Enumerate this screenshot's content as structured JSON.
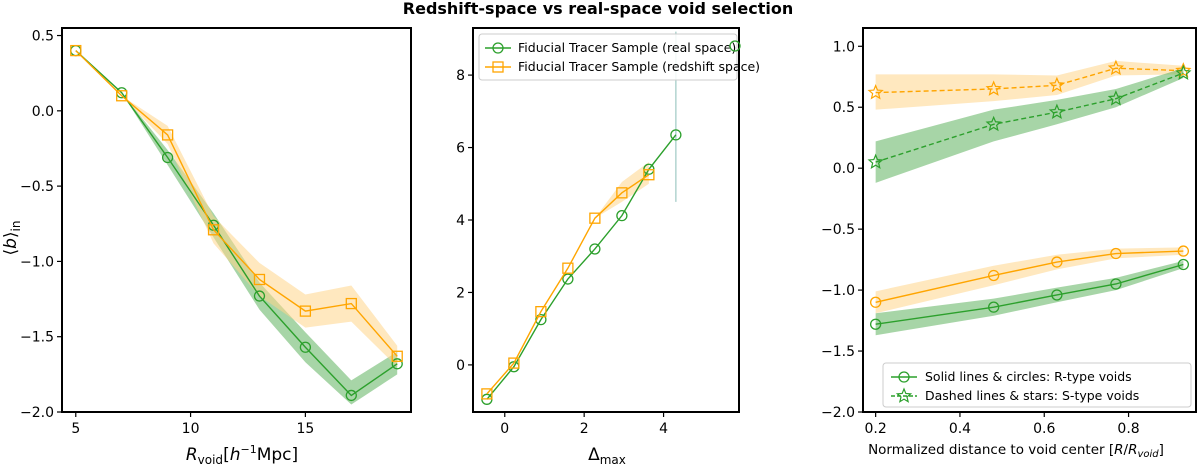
{
  "suptitle": "Redshift-space vs real-space void selection",
  "colors": {
    "green": "#2ca02c",
    "orange": "#ffa500",
    "green_fill": "#5fb35f",
    "orange_fill": "#ffd68a"
  },
  "chart_data": [
    {
      "type": "line",
      "panel": "left",
      "xlabel": "R_void [h^-1 Mpc]",
      "ylabel": "⟨b⟩_in",
      "xlim": [
        4.4,
        19.6
      ],
      "ylim": [
        -2.0,
        0.55
      ],
      "xticks": [
        5,
        10,
        15
      ],
      "yticks": [
        0.5,
        0.0,
        -0.5,
        -1.0,
        -1.5,
        -2.0
      ],
      "ytick_labels": [
        "0.5",
        "0.0",
        "−0.5",
        "−1.0",
        "−1.5",
        "−2.0"
      ],
      "series": [
        {
          "color": "green",
          "marker": "circle",
          "linestyle": "solid",
          "x": [
            5,
            7,
            9,
            11,
            13,
            15,
            17,
            19
          ],
          "y": [
            0.4,
            0.12,
            -0.31,
            -0.76,
            -1.23,
            -1.57,
            -1.89,
            -1.68
          ],
          "band_lo": [
            0.4,
            0.12,
            -0.36,
            -0.84,
            -1.32,
            -1.67,
            -1.95,
            -1.75
          ],
          "band_hi": [
            0.4,
            0.12,
            -0.26,
            -0.68,
            -1.14,
            -1.47,
            -1.79,
            -1.6
          ]
        },
        {
          "color": "orange",
          "marker": "square",
          "linestyle": "solid",
          "x": [
            5,
            7,
            9,
            11,
            13,
            15,
            17,
            19
          ],
          "y": [
            0.4,
            0.1,
            -0.16,
            -0.79,
            -1.12,
            -1.33,
            -1.28,
            -1.63
          ],
          "band_lo": [
            0.4,
            0.1,
            -0.22,
            -0.88,
            -1.23,
            -1.44,
            -1.4,
            -1.7
          ],
          "band_hi": [
            0.4,
            0.1,
            -0.1,
            -0.7,
            -1.01,
            -1.22,
            -1.16,
            -1.56
          ]
        }
      ]
    },
    {
      "type": "line",
      "panel": "middle",
      "xlabel": "Δ_max",
      "xlim": [
        -0.8,
        5.9
      ],
      "ylim": [
        -1.3,
        9.3
      ],
      "xticks": [
        0,
        2,
        4
      ],
      "yticks": [
        0,
        2,
        4,
        6,
        8
      ],
      "legend_loc": "upper left",
      "series": [
        {
          "name": "Fiducial Tracer Sample (real space)",
          "color": "green",
          "marker": "circle",
          "linestyle": "solid",
          "x": [
            -0.45,
            0.23,
            0.91,
            1.59,
            2.27,
            2.95,
            3.63,
            4.31
          ],
          "y": [
            -0.95,
            -0.05,
            1.25,
            2.37,
            3.2,
            4.12,
            5.4,
            6.35
          ],
          "errorbar_last": [
            4.5,
            9.2
          ]
        },
        {
          "name": "Fiducial Tracer Sample (redshift space)",
          "color": "orange",
          "marker": "square",
          "linestyle": "solid",
          "x": [
            -0.45,
            0.23,
            0.91,
            1.59,
            2.27,
            2.95,
            3.63
          ],
          "y": [
            -0.8,
            0.05,
            1.47,
            2.67,
            4.05,
            4.75,
            5.25
          ],
          "band_lo": [
            -0.8,
            0.05,
            1.47,
            2.67,
            4.05,
            4.5,
            5.0
          ],
          "band_hi": [
            -0.8,
            0.05,
            1.47,
            2.67,
            4.05,
            5.05,
            5.6
          ]
        }
      ]
    },
    {
      "type": "line",
      "panel": "right",
      "xlabel": "Normalized distance to void center [R/R_void]",
      "xlim": [
        0.17,
        0.96
      ],
      "ylim": [
        -2.0,
        1.15
      ],
      "xticks": [
        0.2,
        0.4,
        0.6,
        0.8
      ],
      "yticks": [
        1.0,
        0.5,
        0.0,
        -0.5,
        -1.0,
        -1.5,
        -2.0
      ],
      "ytick_labels": [
        "1.0",
        "0.5",
        "0.0",
        "−0.5",
        "−1.0",
        "−1.5",
        "−2.0"
      ],
      "legend_loc": "lower right",
      "legend": [
        {
          "label": "Solid lines & circles: R-type voids",
          "marker": "circle",
          "linestyle": "solid"
        },
        {
          "label": "Dashed lines & stars: S-type voids",
          "marker": "star",
          "linestyle": "dashed"
        }
      ],
      "series": [
        {
          "color": "orange",
          "marker": "star",
          "linestyle": "dashed",
          "x": [
            0.2,
            0.48,
            0.63,
            0.77,
            0.93
          ],
          "y": [
            0.62,
            0.65,
            0.68,
            0.82,
            0.8
          ],
          "band_lo": [
            0.48,
            0.55,
            0.6,
            0.76,
            0.77
          ],
          "band_hi": [
            0.77,
            0.77,
            0.76,
            0.88,
            0.84
          ]
        },
        {
          "color": "green",
          "marker": "star",
          "linestyle": "dashed",
          "x": [
            0.2,
            0.48,
            0.63,
            0.77,
            0.93
          ],
          "y": [
            0.05,
            0.36,
            0.46,
            0.57,
            0.78
          ],
          "band_lo": [
            -0.12,
            0.22,
            0.36,
            0.5,
            0.74
          ],
          "band_hi": [
            0.22,
            0.48,
            0.56,
            0.65,
            0.82
          ]
        },
        {
          "color": "orange",
          "marker": "circle",
          "linestyle": "solid",
          "x": [
            0.2,
            0.48,
            0.63,
            0.77,
            0.93
          ],
          "y": [
            -1.1,
            -0.88,
            -0.77,
            -0.7,
            -0.68
          ],
          "band_lo": [
            -1.19,
            -0.96,
            -0.83,
            -0.74,
            -0.71
          ],
          "band_hi": [
            -1.01,
            -0.8,
            -0.71,
            -0.66,
            -0.65
          ]
        },
        {
          "color": "green",
          "marker": "circle",
          "linestyle": "solid",
          "x": [
            0.2,
            0.48,
            0.63,
            0.77,
            0.93
          ],
          "y": [
            -1.28,
            -1.14,
            -1.04,
            -0.95,
            -0.79
          ],
          "band_lo": [
            -1.37,
            -1.21,
            -1.1,
            -1.0,
            -0.82
          ],
          "band_hi": [
            -1.19,
            -1.07,
            -0.98,
            -0.9,
            -0.76
          ]
        }
      ]
    }
  ]
}
